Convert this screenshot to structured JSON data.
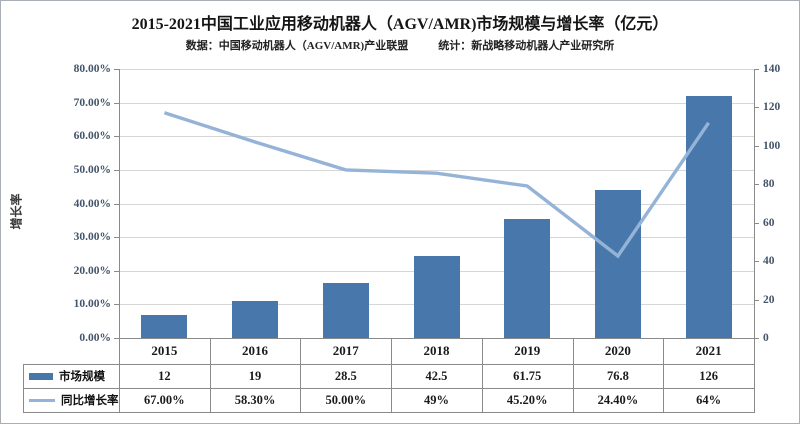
{
  "header": {
    "title": "2015-2021中国工业应用移动机器人（AGV/AMR)市场规模与增长率（亿元）",
    "subtitle_left": "数据：中国移动机器人（AGV/AMR)产业联盟",
    "subtitle_right": "统计：新战略移动机器人产业研究所"
  },
  "colors": {
    "bar": "#4777ab",
    "line": "#95b3d7",
    "gridline": "#d6d6d6",
    "axis_line": "#8a8a8a",
    "tick_label": "#44546a"
  },
  "chart_data": {
    "type": "bar",
    "subtype": "bar+line combo with data table",
    "categories": [
      "2015",
      "2016",
      "2017",
      "2018",
      "2019",
      "2020",
      "2021"
    ],
    "series": [
      {
        "name": "市场规模",
        "type": "bar",
        "axis": "right",
        "values": [
          12,
          19,
          28.5,
          42.5,
          61.75,
          76.8,
          126
        ],
        "labels": [
          "12",
          "19",
          "28.5",
          "42.5",
          "61.75",
          "76.8",
          "126"
        ],
        "color": "#4777ab"
      },
      {
        "name": "同比增长率",
        "type": "line",
        "axis": "left",
        "values": [
          67,
          58.3,
          50,
          49,
          45.2,
          24.4,
          64
        ],
        "labels": [
          "67.00%",
          "58.30%",
          "50.00%",
          "49%",
          "45.20%",
          "24.40%",
          "64%"
        ],
        "color": "#95b3d7"
      }
    ],
    "title": "2015-2021中国工业应用移动机器人（AGV/AMR)市场规模与增长率（亿元）",
    "left_axis": {
      "title": "增长率",
      "min": 0,
      "max": 80,
      "tick_labels": [
        "80.00%",
        "70.00%",
        "60.00%",
        "50.00%",
        "40.00%",
        "30.00%",
        "20.00%",
        "10.00%",
        "0.00%"
      ]
    },
    "right_axis": {
      "title": "",
      "min": 0,
      "max": 140,
      "tick_labels": [
        "140",
        "120",
        "100",
        "80",
        "60",
        "40",
        "20",
        "0"
      ]
    },
    "grid": true,
    "legend_position": "data-table-left"
  }
}
